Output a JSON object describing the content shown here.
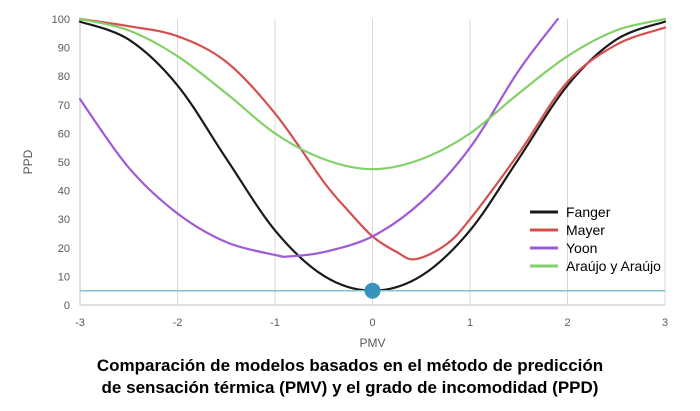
{
  "chart_data": {
    "type": "line",
    "title": "",
    "xlabel": "PMV",
    "ylabel": "PPD",
    "xlim": [
      -3,
      3
    ],
    "ylim": [
      0,
      100
    ],
    "x_ticks": [
      -3,
      -2,
      -1,
      0,
      1,
      2,
      3
    ],
    "y_ticks": [
      0,
      10,
      20,
      30,
      40,
      50,
      60,
      70,
      80,
      90,
      100
    ],
    "grid": "vertical",
    "legend_position": "right",
    "series": [
      {
        "name": "Fanger",
        "color": "#1a1a1a",
        "x": [
          -3,
          -2.5,
          -2,
          -1.5,
          -1,
          -0.5,
          0,
          0.5,
          1,
          1.5,
          2,
          2.5,
          3
        ],
        "y": [
          99.1,
          92.8,
          76.8,
          51.2,
          26.1,
          10.2,
          5.0,
          10.2,
          26.1,
          51.2,
          76.8,
          92.8,
          99.1
        ]
      },
      {
        "name": "Mayer",
        "color": "#d64f4f",
        "x": [
          -3,
          -2.5,
          -2,
          -1.5,
          -1,
          -0.5,
          -0.25,
          0,
          0.25,
          0.44,
          0.75,
          1,
          1.5,
          2,
          2.5,
          3
        ],
        "y": [
          100,
          97.5,
          94,
          85,
          67,
          43,
          33,
          24,
          18.5,
          16,
          21,
          30,
          53,
          78,
          91,
          97
        ]
      },
      {
        "name": "Yoon",
        "color": "#a05ad8",
        "x": [
          -3,
          -2.5,
          -2,
          -1.5,
          -1,
          -0.85,
          -0.5,
          0,
          0.5,
          1,
          1.5,
          1.9
        ],
        "y": [
          72,
          48,
          32,
          22,
          17.5,
          17,
          18.5,
          24,
          36,
          55,
          82,
          100
        ]
      },
      {
        "name": "Araújo y Araújo",
        "color": "#82d068",
        "x": [
          -3,
          -2.5,
          -2,
          -1.5,
          -1,
          -0.5,
          0,
          0.5,
          1,
          1.5,
          2,
          2.5,
          3
        ],
        "y": [
          100,
          96,
          87,
          74,
          60,
          51,
          47.5,
          51,
          60,
          74,
          87,
          96,
          100
        ]
      }
    ],
    "reference_line": {
      "y": 5,
      "color": "#80c4cc"
    },
    "marker_point": {
      "x": 0,
      "y": 5,
      "color": "#3a93bc"
    }
  },
  "caption": {
    "line1": "Comparación de modelos basados en el método de predicción",
    "line2": "de sensación térmica  (PMV) y el grado de incomodidad (PPD)"
  }
}
